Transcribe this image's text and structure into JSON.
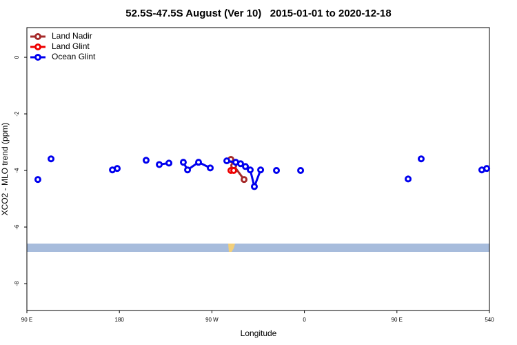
{
  "chart_data": {
    "type": "line",
    "title": "52.5S-47.5S August (Ver 10)   2015-01-01 to 2020-12-18",
    "xlabel": "Longitude",
    "ylabel": "XCO2 - MLO trend (ppm)",
    "xlim": [
      90,
      540
    ],
    "ylim": [
      -8.95,
      1.05
    ],
    "xticks": [
      {
        "value": 90,
        "label": "90 E"
      },
      180,
      {
        "value": 270,
        "label": "90 W"
      },
      {
        "value": 360,
        "label": "0"
      },
      {
        "value": 450,
        "label": "90 E"
      },
      540
    ],
    "yticks": [
      0,
      -2,
      -4,
      -6,
      -8
    ],
    "legend": "top-left",
    "series": [
      {
        "name": "Land Nadir",
        "color": "#a52a2a",
        "x": [
          288.5,
          291.2,
          301.3
        ],
        "values": [
          -3.61,
          -3.83,
          -4.32
        ]
      },
      {
        "name": "Land Glint",
        "color": "#ee0000",
        "x": [
          288.5,
          291.2
        ],
        "values": [
          -4.0,
          -4.0
        ]
      },
      {
        "name": "Ocean Glint",
        "color": "#0000ee",
        "x": [
          100.7,
          113.5,
          173.2,
          177.9,
          206.0,
          218.8,
          228.2,
          242.2,
          246.3,
          257.0,
          268.4,
          284.5,
          293.2,
          297.9,
          302.6,
          307.3,
          311.3,
          317.4,
          332.8,
          356.3,
          460.9,
          473.6,
          532.6,
          537.4
        ],
        "values": [
          -4.32,
          -3.59,
          -3.98,
          -3.93,
          -3.64,
          -3.79,
          -3.74,
          -3.71,
          -3.98,
          -3.71,
          -3.91,
          -3.66,
          -3.71,
          -3.76,
          -3.86,
          -3.98,
          -4.57,
          -3.98,
          -4.0,
          -4.0,
          -4.3,
          -3.59,
          -3.98,
          -3.93
        ]
      }
    ]
  }
}
